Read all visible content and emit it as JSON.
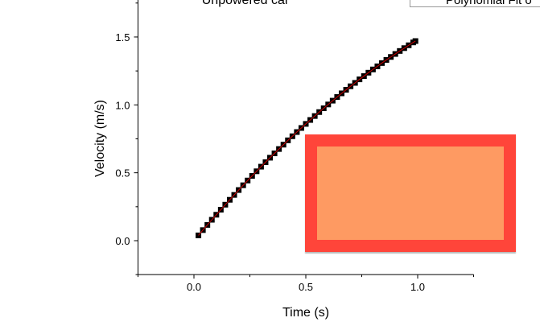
{
  "chart_data": {
    "type": "scatter",
    "title": "Unpowered car",
    "xlabel": "Time (s)",
    "ylabel": "Velocity (m/s)",
    "xlim": [
      -0.25,
      1.25
    ],
    "ylim": [
      -0.25,
      1.75
    ],
    "xticks": [
      "0.0",
      "0.5",
      "1.0"
    ],
    "xtick_values": [
      0.0,
      0.5,
      1.0
    ],
    "yticks": [
      "0.0",
      "0.5",
      "1.0",
      "1.5"
    ],
    "ytick_values": [
      0.0,
      0.5,
      1.0,
      1.5
    ],
    "grid": false,
    "legend": {
      "placement": "top-right",
      "entries": [
        "Polynomial Fit o"
      ]
    },
    "series": [
      {
        "marker": "square",
        "color": "#000000",
        "x": [
          0.02,
          0.04,
          0.06,
          0.08,
          0.1,
          0.12,
          0.14,
          0.16,
          0.18,
          0.2,
          0.22,
          0.24,
          0.26,
          0.28,
          0.3,
          0.32,
          0.34,
          0.36,
          0.38,
          0.4,
          0.42,
          0.44,
          0.46,
          0.48,
          0.5,
          0.52,
          0.54,
          0.56,
          0.58,
          0.6,
          0.62,
          0.64,
          0.66,
          0.68,
          0.7,
          0.72,
          0.74,
          0.76,
          0.78,
          0.8,
          0.82,
          0.84,
          0.86,
          0.88,
          0.9,
          0.92,
          0.94,
          0.96,
          0.98,
          0.99
        ],
        "y": [
          0.039,
          0.078,
          0.116,
          0.154,
          0.191,
          0.228,
          0.265,
          0.301,
          0.337,
          0.373,
          0.408,
          0.443,
          0.477,
          0.511,
          0.545,
          0.578,
          0.611,
          0.643,
          0.675,
          0.707,
          0.739,
          0.769,
          0.8,
          0.83,
          0.86,
          0.889,
          0.918,
          0.947,
          0.975,
          1.003,
          1.031,
          1.058,
          1.085,
          1.111,
          1.137,
          1.162,
          1.188,
          1.212,
          1.237,
          1.261,
          1.284,
          1.308,
          1.331,
          1.353,
          1.375,
          1.397,
          1.418,
          1.439,
          1.46,
          1.47
        ]
      },
      {
        "name": "Polynomial Fit o",
        "type": "line",
        "color": "#cc0000"
      }
    ]
  },
  "redaction": {
    "outer_color": "#ff453a",
    "inner_color": "#fe9a62"
  }
}
